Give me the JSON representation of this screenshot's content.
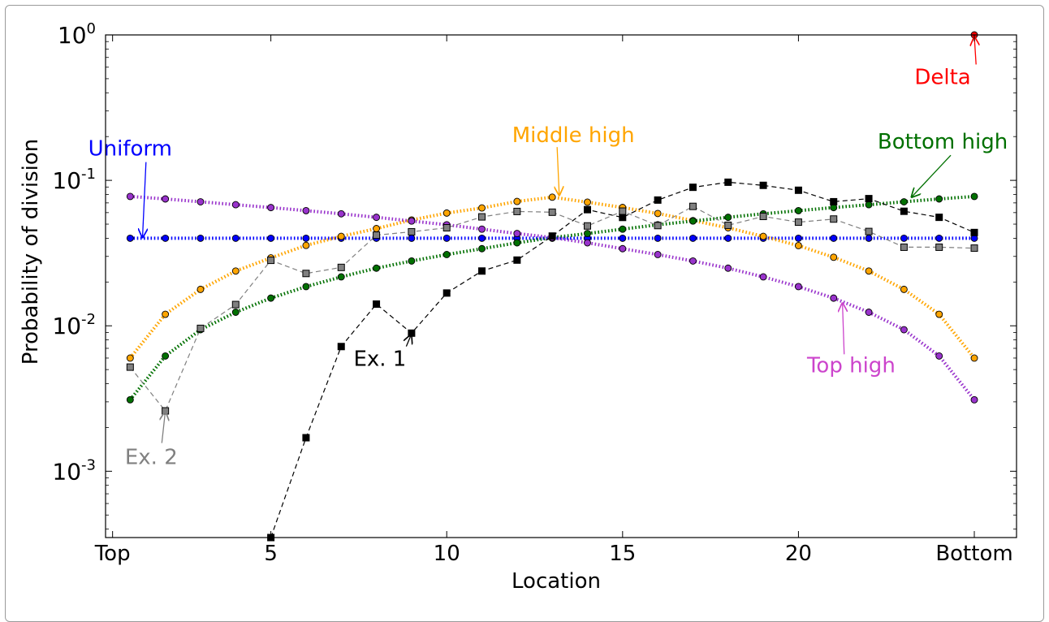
{
  "chart_data": {
    "type": "line",
    "xlabel": "Location",
    "ylabel": "Probability of division",
    "yscale": "log",
    "xlim": [
      0.3,
      26.2
    ],
    "ylim": [
      0.00035,
      1.0
    ],
    "grid": false,
    "x_ticks": [
      {
        "value": 0.5,
        "label": "Top"
      },
      {
        "value": 5,
        "label": "5"
      },
      {
        "value": 10,
        "label": "10"
      },
      {
        "value": 15,
        "label": "15"
      },
      {
        "value": 20,
        "label": "20"
      },
      {
        "value": 25,
        "label": "Bottom"
      }
    ],
    "y_ticks": [
      {
        "value": 0.001,
        "base": "10",
        "exp": "-3"
      },
      {
        "value": 0.01,
        "base": "10",
        "exp": "-2"
      },
      {
        "value": 0.1,
        "base": "10",
        "exp": "-1"
      },
      {
        "value": 1,
        "base": "10",
        "exp": "0"
      }
    ],
    "x": [
      1,
      2,
      3,
      4,
      5,
      6,
      7,
      8,
      9,
      10,
      11,
      12,
      13,
      14,
      15,
      16,
      17,
      18,
      19,
      20,
      21,
      22,
      23,
      24,
      25
    ],
    "series": [
      {
        "name": "Uniform",
        "color": "#0000ff",
        "style": "dotted",
        "marker": "circle",
        "values": [
          0.04,
          0.04,
          0.04,
          0.04,
          0.04,
          0.04,
          0.04,
          0.04,
          0.04,
          0.04,
          0.04,
          0.04,
          0.04,
          0.04,
          0.04,
          0.04,
          0.04,
          0.04,
          0.04,
          0.04,
          0.04,
          0.04,
          0.04,
          0.04,
          0.04
        ]
      },
      {
        "name": "Middle high",
        "color": "#ffa500",
        "style": "dotted",
        "marker": "circle",
        "values": [
          0.006,
          0.012,
          0.0178,
          0.0238,
          0.0293,
          0.0357,
          0.0412,
          0.0466,
          0.0534,
          0.0596,
          0.0646,
          0.0716,
          0.0766,
          0.0708,
          0.0651,
          0.0592,
          0.0529,
          0.0472,
          0.0412,
          0.0356,
          0.0296,
          0.0238,
          0.0178,
          0.012,
          0.006
        ]
      },
      {
        "name": "Bottom high",
        "color": "#007000",
        "style": "dotted",
        "marker": "circle",
        "values": [
          0.0031,
          0.0062,
          0.0094,
          0.0124,
          0.0155,
          0.0186,
          0.0217,
          0.0249,
          0.0279,
          0.0309,
          0.0339,
          0.0372,
          0.0404,
          0.0431,
          0.0462,
          0.0495,
          0.0525,
          0.0557,
          0.0589,
          0.0619,
          0.065,
          0.068,
          0.0712,
          0.0745,
          0.0775
        ]
      },
      {
        "name": "Top high",
        "color": "#9933cc",
        "style": "dotted",
        "marker": "circle",
        "values": [
          0.0775,
          0.0745,
          0.0712,
          0.068,
          0.065,
          0.0619,
          0.0589,
          0.0557,
          0.0525,
          0.0495,
          0.0462,
          0.0431,
          0.0404,
          0.0372,
          0.0339,
          0.0309,
          0.0279,
          0.0249,
          0.0217,
          0.0186,
          0.0155,
          0.0124,
          0.0094,
          0.0062,
          0.0031
        ]
      },
      {
        "name": "Ex. 1",
        "color": "#000000",
        "style": "dashed",
        "marker": "square",
        "values": [
          null,
          null,
          null,
          null,
          0.00035,
          0.0017,
          0.0072,
          0.0141,
          0.0089,
          0.0168,
          0.0238,
          0.0283,
          0.0414,
          0.0629,
          0.0556,
          0.0732,
          0.0896,
          0.0971,
          0.0924,
          0.0855,
          0.0713,
          0.0749,
          0.0613,
          0.0557,
          0.0438
        ]
      },
      {
        "name": "Ex. 2",
        "color": "#808080",
        "style": "dashed",
        "marker": "square",
        "values": [
          0.0052,
          0.0026,
          0.0096,
          0.014,
          0.0282,
          0.0229,
          0.0252,
          0.042,
          0.0443,
          0.0472,
          0.0561,
          0.0611,
          0.0604,
          0.0486,
          0.0614,
          0.0489,
          0.0662,
          0.0491,
          0.0565,
          0.0516,
          0.0542,
          0.0445,
          0.0347,
          0.0347,
          0.0342
        ]
      },
      {
        "name": "Delta",
        "color": "#ff0000",
        "style": "none",
        "marker": "circle",
        "values": [
          null,
          null,
          null,
          null,
          null,
          null,
          null,
          null,
          null,
          null,
          null,
          null,
          null,
          null,
          null,
          null,
          null,
          null,
          null,
          null,
          null,
          null,
          null,
          null,
          1.0
        ]
      }
    ],
    "annotations": [
      {
        "text": "Uniform",
        "color": "#0000ff",
        "text_x": 1.0,
        "text_y": 0.148,
        "arrow_x": 1.35,
        "arrow_y": 0.04
      },
      {
        "text": "Middle high",
        "color": "#ffa500",
        "text_x": 13.6,
        "text_y": 0.183,
        "arrow_x": 13.2,
        "arrow_y": 0.078
      },
      {
        "text": "Bottom high",
        "color": "#007000",
        "text_x": 24.1,
        "text_y": 0.165,
        "arrow_x": 23.2,
        "arrow_y": 0.076
      },
      {
        "text": "Top high",
        "color": "#cc44cc",
        "text_x": 21.5,
        "text_y": 0.0048,
        "arrow_x": 21.25,
        "arrow_y": 0.0145
      },
      {
        "text": "Ex. 1",
        "color": "#000000",
        "text_x": 8.1,
        "text_y": 0.0053,
        "arrow_x": 9.0,
        "arrow_y": 0.0088
      },
      {
        "text": "Ex. 2",
        "color": "#808080",
        "text_x": 1.6,
        "text_y": 0.00112,
        "arrow_x": 2.0,
        "arrow_y": 0.0026
      },
      {
        "text": "Delta",
        "color": "#ff0000",
        "text_x": 24.1,
        "text_y": 0.46,
        "arrow_x": 25.0,
        "arrow_y": 0.98
      }
    ]
  }
}
